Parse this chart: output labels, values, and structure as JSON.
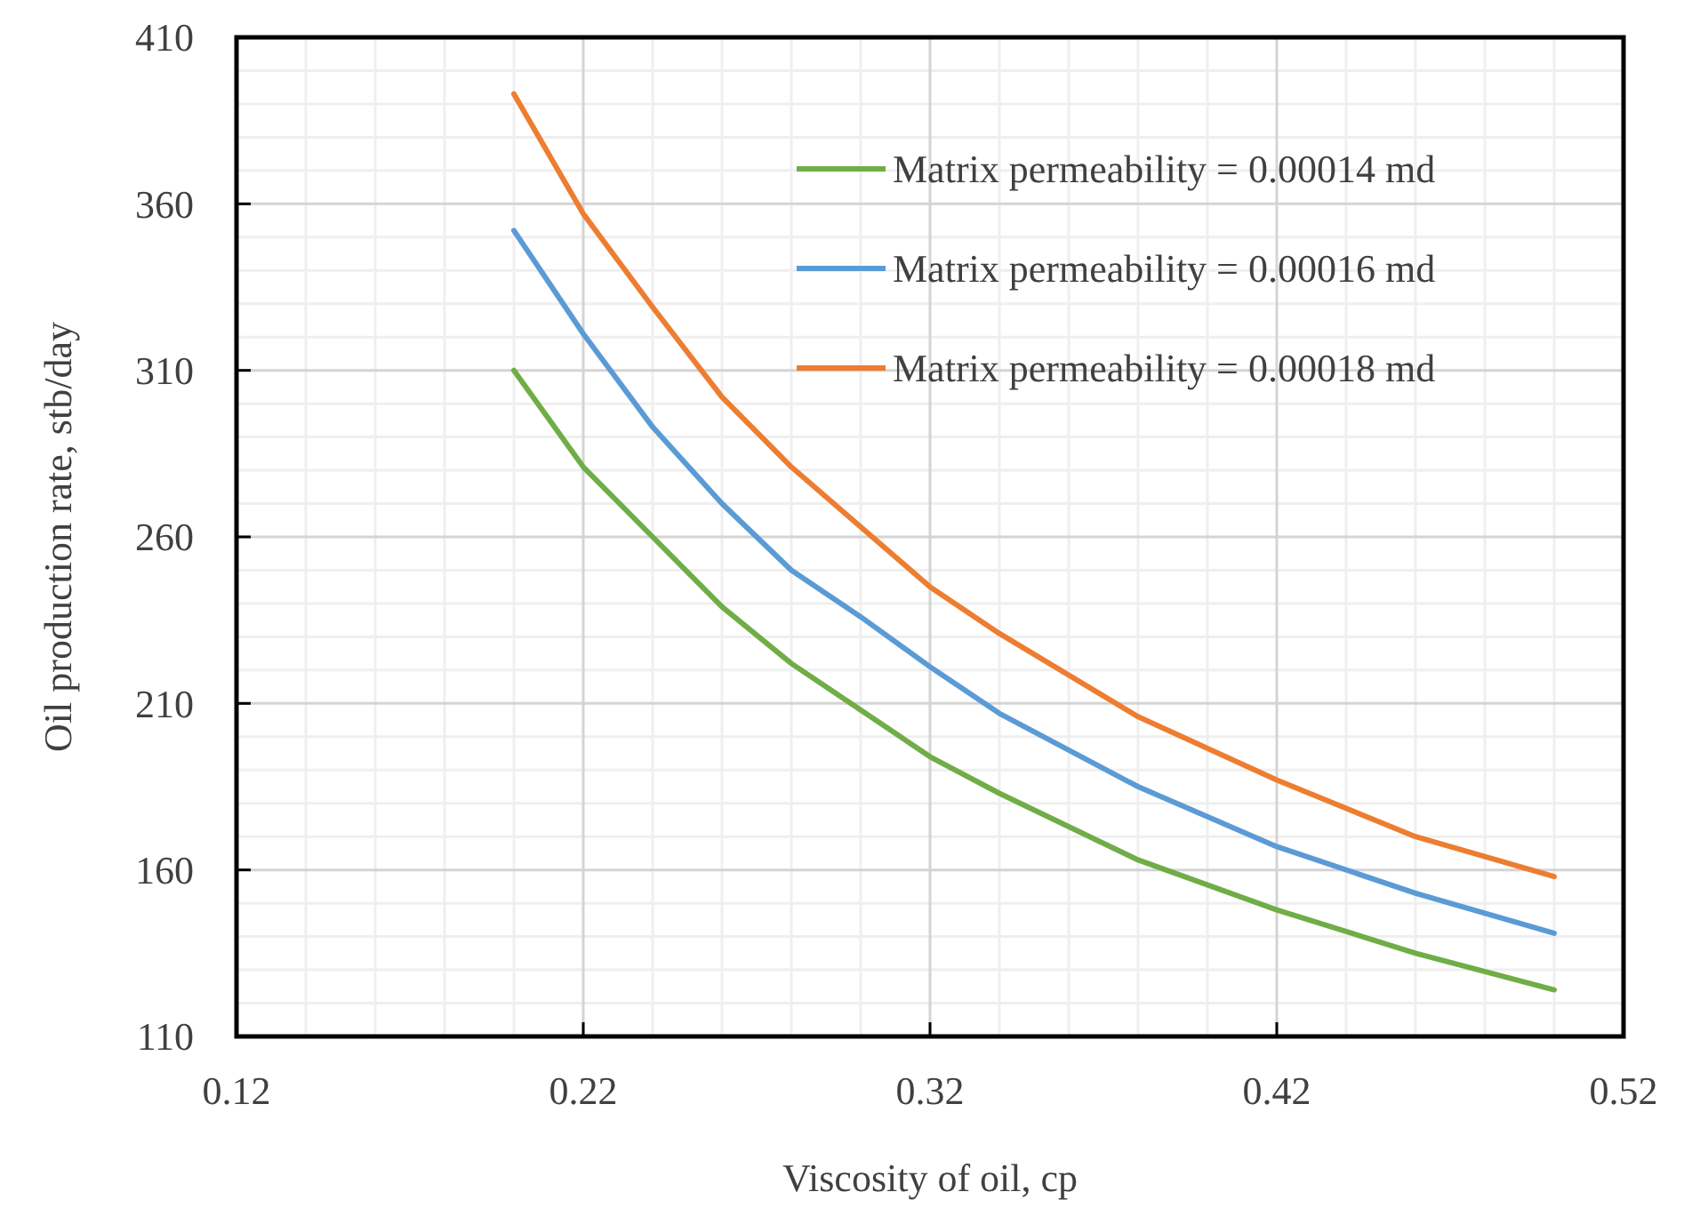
{
  "chart_data": {
    "type": "line",
    "xlabel": "Viscosity of oil, cp",
    "ylabel": "Oil production rate, stb/day",
    "x": [
      0.2,
      0.22,
      0.24,
      0.26,
      0.28,
      0.3,
      0.32,
      0.34,
      0.38,
      0.42,
      0.46,
      0.5
    ],
    "series": [
      {
        "name": "Matrix permeability = 0.00014 md",
        "color": "#70ad47",
        "values": [
          310,
          281,
          260,
          239,
          222,
          208,
          194,
          183,
          163,
          148,
          135,
          124
        ]
      },
      {
        "name": "Matrix permeability = 0.00016 md",
        "color": "#5b9bd5",
        "values": [
          352,
          321,
          293,
          270,
          250,
          236,
          221,
          207,
          185,
          167,
          153,
          141
        ]
      },
      {
        "name": "Matrix permeability = 0.00018 md",
        "color": "#ed7d31",
        "values": [
          393,
          357,
          329,
          302,
          281,
          263,
          245,
          231,
          206,
          187,
          170,
          158
        ]
      }
    ],
    "xlim": [
      0.12,
      0.52
    ],
    "xticks": [
      {
        "value": 0.12,
        "label": "0.12"
      },
      {
        "value": 0.22,
        "label": "0.22"
      },
      {
        "value": 0.32,
        "label": "0.32"
      },
      {
        "value": 0.42,
        "label": "0.42"
      },
      {
        "value": 0.52,
        "label": "0.52"
      }
    ],
    "ylim": [
      110,
      410
    ],
    "yticks": [
      110,
      160,
      210,
      260,
      310,
      360,
      410
    ],
    "grid": true,
    "legend": "top right",
    "marker": "none",
    "line_style": "solid"
  }
}
